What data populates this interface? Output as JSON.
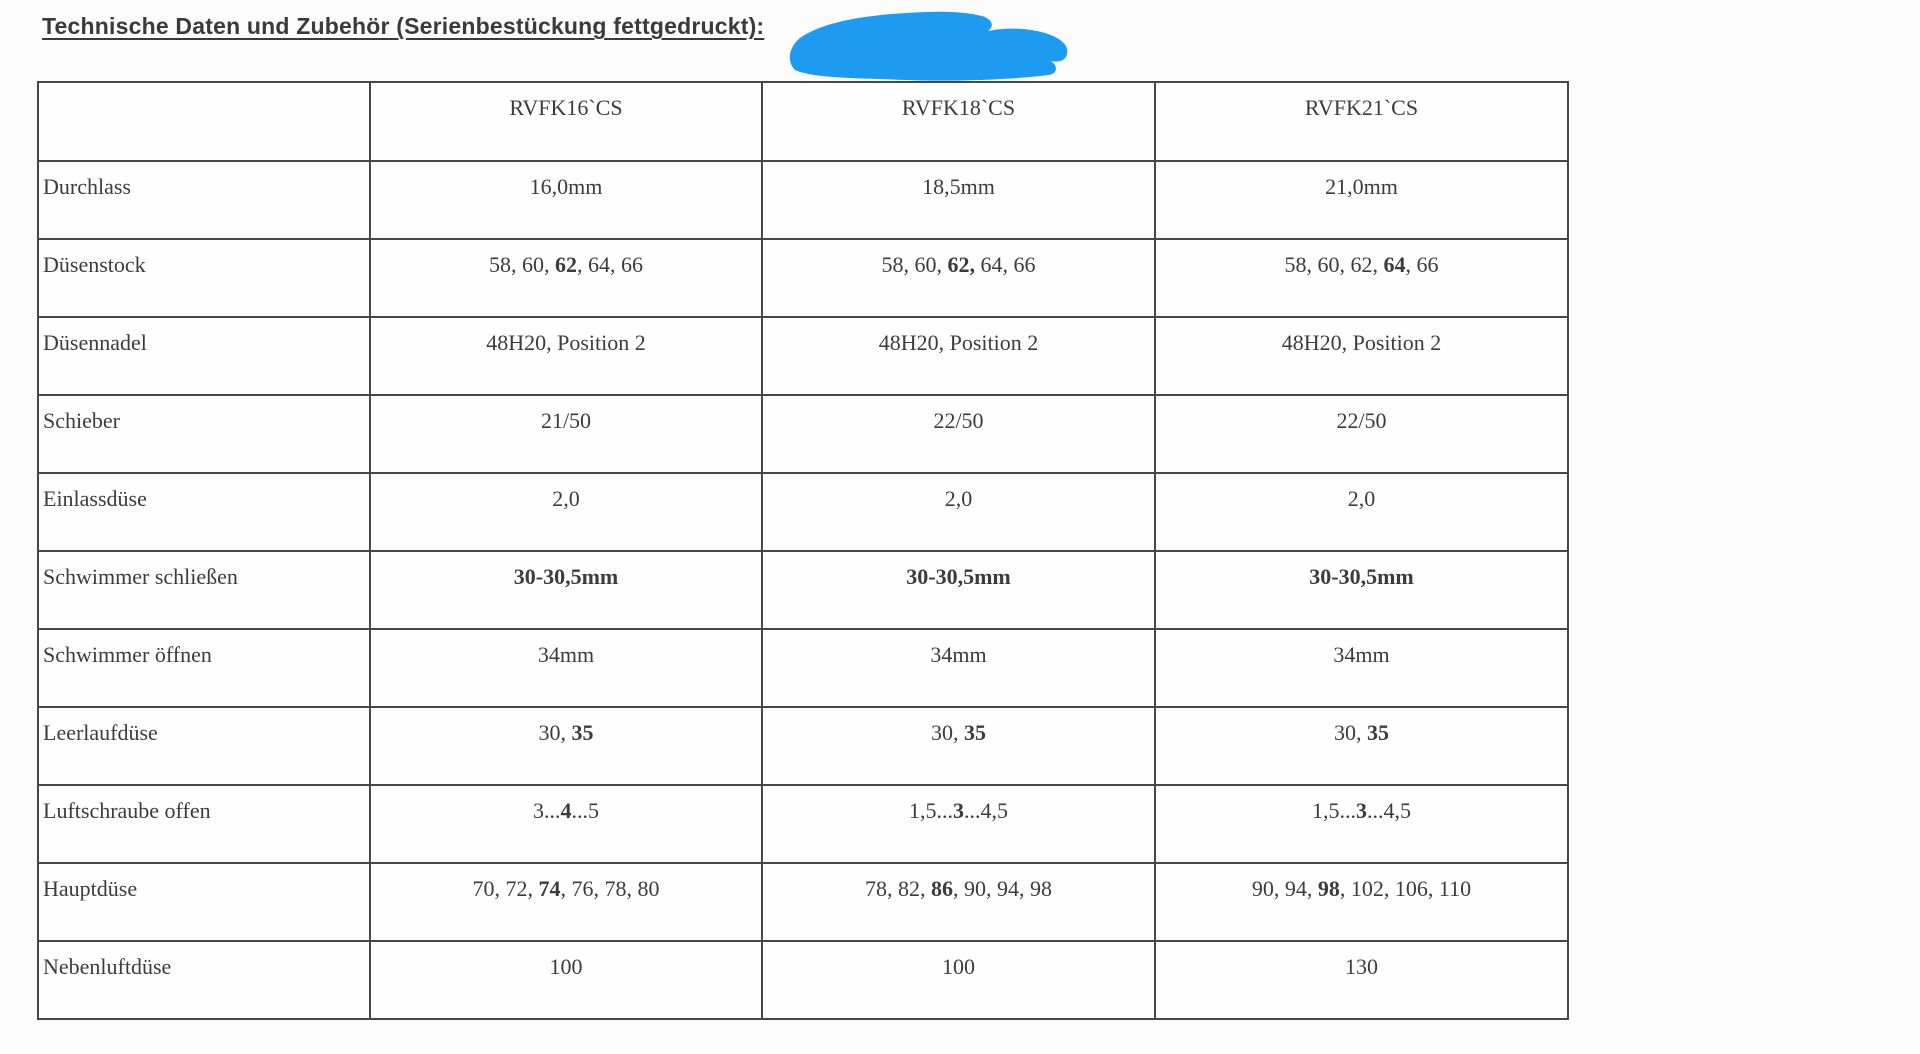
{
  "page": {
    "title": "Technische Daten und Zubehör (Serienbestückung fettgedruckt):"
  },
  "annotation": {
    "kind": "marker-scribble",
    "color": "#1d9bf0"
  },
  "table": {
    "note": "segments wrapped in ** render bold (Serienbestückung)",
    "columns": [
      "",
      "RVFK16`CS",
      "RVFK18`CS",
      "RVFK21`CS"
    ],
    "rows": [
      {
        "label": "Durchlass",
        "values": [
          "16,0mm",
          "18,5mm",
          "21,0mm"
        ]
      },
      {
        "label": "Düsenstock",
        "values": [
          "58, 60, **62**, 64, 66",
          "58, 60, **62,** 64, 66",
          "58, 60, 62, **64**, 66"
        ]
      },
      {
        "label": "Düsennadel",
        "values": [
          "48H20, Position 2",
          "48H20, Position 2",
          "48H20, Position 2"
        ]
      },
      {
        "label": "Schieber",
        "values": [
          "21/50",
          "22/50",
          "22/50"
        ]
      },
      {
        "label": "Einlassdüse",
        "values": [
          "2,0",
          "2,0",
          "2,0"
        ]
      },
      {
        "label": "Schwimmer schließen",
        "values": [
          "**30-30,5mm**",
          "**30-30,5mm**",
          "**30-30,5mm**"
        ]
      },
      {
        "label": "Schwimmer öffnen",
        "values": [
          "34mm",
          "34mm",
          "34mm"
        ]
      },
      {
        "label": "Leerlaufdüse",
        "values": [
          "30, **35**",
          "30, **35**",
          "30, **35**"
        ]
      },
      {
        "label": "Luftschraube offen",
        "values": [
          "3...**4**...5",
          "1,5...**3**...4,5",
          "1,5...**3**...4,5"
        ]
      },
      {
        "label": "Hauptdüse",
        "values": [
          "70, 72, **74**, 76, 78, 80",
          "78, 82, **86**, 90, 94, 98",
          "90, 94, **98**, 102, 106, 110"
        ]
      },
      {
        "label": "Nebenluftdüse",
        "values": [
          "100",
          "100",
          "130"
        ]
      }
    ]
  },
  "colors": {
    "text": "#3c3c3c",
    "border": "#474747",
    "background": "#fcfcfc",
    "marker": "#1d9bf0"
  }
}
